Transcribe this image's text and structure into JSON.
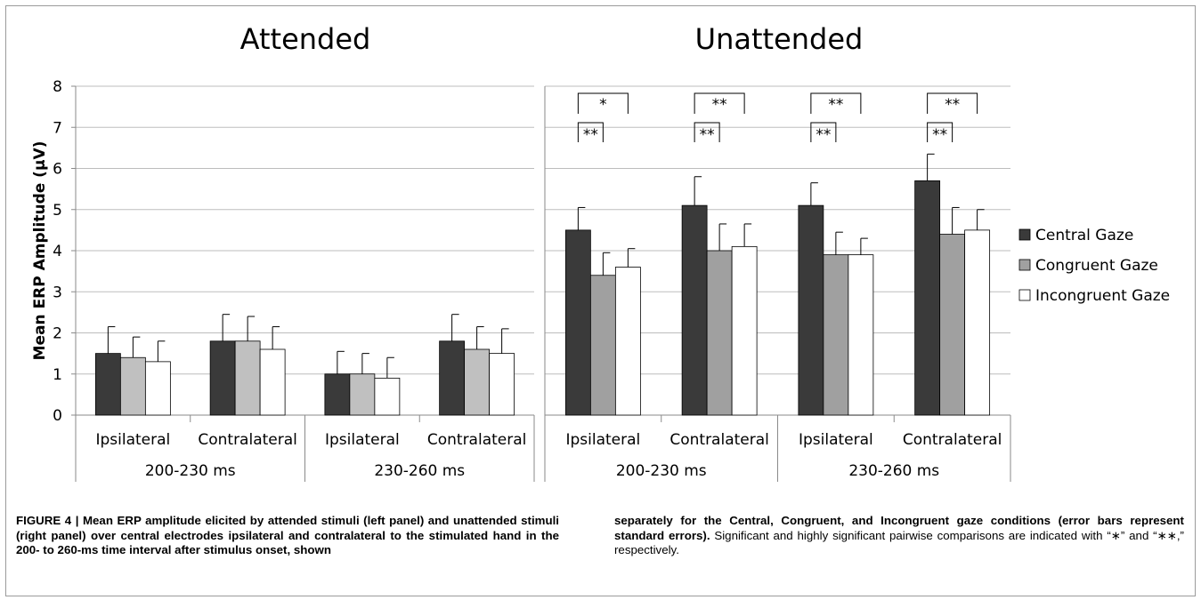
{
  "chart_data": [
    {
      "type": "bar",
      "title": "Attended",
      "ylabel": "Mean ERP Amplitude (µV)",
      "ylim": [
        0,
        8
      ],
      "yticks": [
        0,
        1,
        2,
        3,
        4,
        5,
        6,
        7,
        8
      ],
      "categories": [
        "Ipsilateral",
        "Contralateral",
        "Ipsilateral",
        "Contralateral"
      ],
      "groups": [
        {
          "label": "200-230 ms",
          "span": [
            0,
            1
          ]
        },
        {
          "label": "230-260 ms",
          "span": [
            2,
            3
          ]
        }
      ],
      "series": [
        {
          "name": "Central Gaze",
          "values": [
            1.5,
            1.8,
            1.0,
            1.8
          ],
          "errors": [
            0.65,
            0.65,
            0.55,
            0.65
          ]
        },
        {
          "name": "Congruent Gaze",
          "values": [
            1.4,
            1.8,
            1.0,
            1.6
          ],
          "errors": [
            0.5,
            0.6,
            0.5,
            0.55
          ]
        },
        {
          "name": "Incongruent Gaze",
          "values": [
            1.3,
            1.6,
            0.9,
            1.5
          ],
          "errors": [
            0.5,
            0.55,
            0.5,
            0.6
          ]
        }
      ],
      "grid": true
    },
    {
      "type": "bar",
      "title": "Unattended",
      "ylim": [
        0,
        8
      ],
      "categories": [
        "Ipsilateral",
        "Contralateral",
        "Ipsilateral",
        "Contralateral"
      ],
      "groups": [
        {
          "label": "200-230 ms",
          "span": [
            0,
            1
          ]
        },
        {
          "label": "230-260 ms",
          "span": [
            2,
            3
          ]
        }
      ],
      "series": [
        {
          "name": "Central Gaze",
          "values": [
            4.5,
            5.1,
            5.1,
            5.7
          ],
          "errors": [
            0.55,
            0.7,
            0.55,
            0.65
          ]
        },
        {
          "name": "Congruent Gaze",
          "values": [
            3.4,
            4.0,
            3.9,
            4.4
          ],
          "errors": [
            0.55,
            0.65,
            0.55,
            0.65
          ]
        },
        {
          "name": "Incongruent Gaze",
          "values": [
            3.6,
            4.1,
            3.9,
            4.5
          ],
          "errors": [
            0.45,
            0.55,
            0.4,
            0.5
          ]
        }
      ],
      "annotations": [
        {
          "category": 0,
          "wide": "*",
          "narrow": "**"
        },
        {
          "category": 1,
          "wide": "**",
          "narrow": "**"
        },
        {
          "category": 2,
          "wide": "**",
          "narrow": "**"
        },
        {
          "category": 3,
          "wide": "**",
          "narrow": "**"
        }
      ],
      "legend": {
        "placement": "right",
        "entries": [
          "Central Gaze",
          "Congruent Gaze",
          "Incongruent Gaze"
        ]
      },
      "grid": true
    }
  ],
  "colors": {
    "central": "#3a3a3a",
    "congruent_attended": "#c0c0c0",
    "congruent_unattended": "#a0a0a0",
    "incongruent": "#ffffff",
    "grid": "#bdbdbd",
    "axis": "#8a8a8a"
  },
  "caption": {
    "left": "FIGURE 4 | Mean ERP amplitude elicited by attended stimuli (left panel) and unattended stimuli (right panel) over central electrodes ipsilateral and contralateral to the stimulated hand in the 200- to 260-ms time interval after stimulus onset, shown",
    "right_bold": "separately for the Central, Congruent, and Incongruent gaze conditions (error bars represent standard errors).",
    "right_normal": " Significant and highly significant pairwise comparisons are indicated with “∗” and “∗∗,” respectively."
  }
}
